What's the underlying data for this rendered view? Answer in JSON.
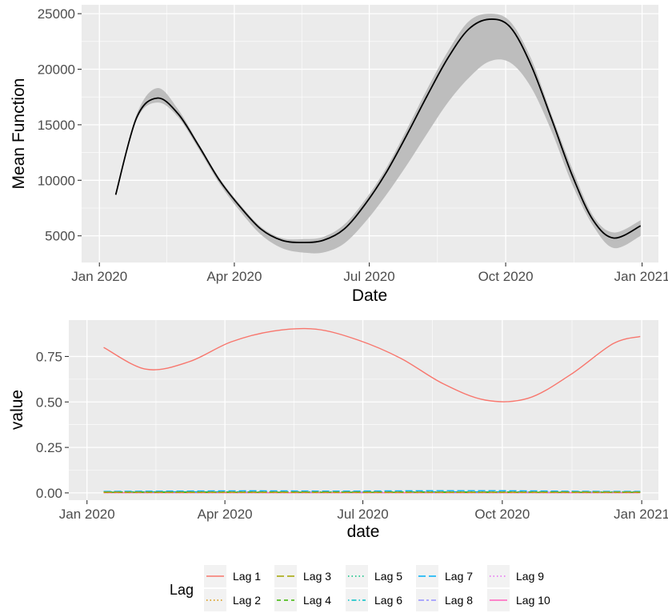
{
  "chart_data": [
    {
      "type": "line",
      "xlabel": "Date",
      "ylabel": "Mean Function",
      "x_tick_labels": [
        "Jan 2020",
        "Apr 2020",
        "Jul 2020",
        "Oct 2020",
        "Jan 2021"
      ],
      "x_tick_dates": [
        "2020-01-01",
        "2020-04-01",
        "2020-07-01",
        "2020-10-01",
        "2021-01-01"
      ],
      "y_tick_labels": [
        "5000",
        "10000",
        "15000",
        "20000",
        "25000"
      ],
      "y_ticks": [
        5000,
        10000,
        15000,
        20000,
        25000
      ],
      "xlim": [
        "2019-12-20",
        "2021-01-12"
      ],
      "ylim": [
        2600,
        25800
      ],
      "grid": true,
      "series": [
        {
          "x": [
            "2020-01-12",
            "2020-01-26",
            "2020-02-09",
            "2020-02-23",
            "2020-03-08",
            "2020-03-22",
            "2020-04-05",
            "2020-04-19",
            "2020-05-03",
            "2020-05-17",
            "2020-05-31",
            "2020-06-14",
            "2020-06-28",
            "2020-07-12",
            "2020-07-26",
            "2020-08-09",
            "2020-08-23",
            "2020-09-06",
            "2020-09-20",
            "2020-10-04",
            "2020-10-18",
            "2020-11-01",
            "2020-11-15",
            "2020-11-29",
            "2020-12-13",
            "2020-12-31"
          ],
          "y": [
            8700,
            15600,
            17400,
            16000,
            13100,
            10000,
            7600,
            5600,
            4600,
            4400,
            4600,
            5600,
            7800,
            10600,
            14000,
            17600,
            21000,
            23600,
            24500,
            23800,
            20400,
            15500,
            10400,
            6400,
            4800,
            5900
          ],
          "lower": [
            8700,
            15400,
            17000,
            15700,
            12800,
            9700,
            7200,
            5100,
            3900,
            3500,
            3500,
            4300,
            6200,
            8600,
            11300,
            14200,
            17000,
            19200,
            20700,
            20600,
            18400,
            14400,
            9600,
            5900,
            3900,
            5000
          ],
          "upper": [
            8800,
            15900,
            18300,
            16400,
            13300,
            10200,
            7800,
            5800,
            4800,
            4700,
            4900,
            6000,
            8200,
            11000,
            14500,
            18200,
            21600,
            24300,
            25000,
            24300,
            21000,
            15900,
            11000,
            6800,
            5300,
            6400
          ],
          "line_color": "#000000",
          "band_color": "#bdbdbd"
        }
      ]
    },
    {
      "type": "line",
      "xlabel": "date",
      "ylabel": "value",
      "x_tick_labels": [
        "Jan 2020",
        "Apr 2020",
        "Jul 2020",
        "Oct 2020",
        "Jan 2021"
      ],
      "x_tick_dates": [
        "2020-01-01",
        "2020-04-01",
        "2020-07-01",
        "2020-10-01",
        "2021-01-01"
      ],
      "y_tick_labels": [
        "0.00",
        "0.25",
        "0.50",
        "0.75"
      ],
      "y_ticks": [
        0,
        0.25,
        0.5,
        0.75
      ],
      "xlim": [
        "2019-12-20",
        "2021-01-12"
      ],
      "ylim": [
        -0.04,
        0.95
      ],
      "grid": true,
      "x": [
        "2020-01-12",
        "2020-02-09",
        "2020-03-08",
        "2020-04-05",
        "2020-05-03",
        "2020-05-31",
        "2020-06-28",
        "2020-07-26",
        "2020-08-23",
        "2020-09-20",
        "2020-10-18",
        "2020-11-15",
        "2020-12-13",
        "2020-12-31"
      ],
      "series": [
        {
          "name": "Lag 1",
          "color": "#F8766D",
          "dash": "solid",
          "values": [
            0.8,
            0.68,
            0.72,
            0.83,
            0.89,
            0.9,
            0.84,
            0.74,
            0.6,
            0.51,
            0.52,
            0.65,
            0.82,
            0.86
          ]
        },
        {
          "name": "Lag 2",
          "color": "#D89000",
          "dash": "dotted",
          "values": [
            0.002,
            0.002,
            0.002,
            0.002,
            0.002,
            0.002,
            0.002,
            0.002,
            0.002,
            0.002,
            0.002,
            0.002,
            0.002,
            0.002
          ]
        },
        {
          "name": "Lag 3",
          "color": "#A3A500",
          "dash": "longdash",
          "values": [
            0.004,
            0.004,
            0.004,
            0.004,
            0.004,
            0.004,
            0.004,
            0.004,
            0.004,
            0.004,
            0.004,
            0.004,
            0.004,
            0.004
          ]
        },
        {
          "name": "Lag 4",
          "color": "#39B600",
          "dash": "dashed",
          "values": [
            0.003,
            0.003,
            0.003,
            0.003,
            0.003,
            0.003,
            0.003,
            0.003,
            0.003,
            0.003,
            0.003,
            0.003,
            0.003,
            0.003
          ]
        },
        {
          "name": "Lag 5",
          "color": "#00BF7D",
          "dash": "dotted",
          "values": [
            0.005,
            0.005,
            0.005,
            0.005,
            0.005,
            0.005,
            0.005,
            0.005,
            0.005,
            0.005,
            0.005,
            0.005,
            0.005,
            0.005
          ]
        },
        {
          "name": "Lag 6",
          "color": "#00BFC4",
          "dash": "dotdash",
          "values": [
            0.006,
            0.006,
            0.006,
            0.006,
            0.006,
            0.006,
            0.006,
            0.006,
            0.006,
            0.006,
            0.006,
            0.006,
            0.006,
            0.006
          ]
        },
        {
          "name": "Lag 7",
          "color": "#00B0F6",
          "dash": "longdash",
          "values": [
            0.008,
            0.009,
            0.01,
            0.011,
            0.011,
            0.01,
            0.01,
            0.011,
            0.012,
            0.012,
            0.011,
            0.009,
            0.008,
            0.008
          ]
        },
        {
          "name": "Lag 8",
          "color": "#9590FF",
          "dash": "twodash",
          "values": [
            0.004,
            0.004,
            0.004,
            0.004,
            0.004,
            0.004,
            0.004,
            0.004,
            0.004,
            0.004,
            0.004,
            0.004,
            0.004,
            0.004
          ]
        },
        {
          "name": "Lag 9",
          "color": "#E76BF3",
          "dash": "dotted",
          "values": [
            0.002,
            0.002,
            0.002,
            0.002,
            0.002,
            0.002,
            0.002,
            0.002,
            0.002,
            0.002,
            0.002,
            0.002,
            0.002,
            0.002
          ]
        },
        {
          "name": "Lag 10",
          "color": "#FF62BC",
          "dash": "solid",
          "values": [
            0.001,
            0.001,
            0.001,
            0.001,
            0.001,
            0.001,
            0.001,
            0.001,
            0.001,
            0.001,
            0.001,
            0.001,
            0.001,
            0.001
          ]
        }
      ]
    }
  ],
  "legend": {
    "title": "Lag",
    "placement": "bottom",
    "items": [
      "Lag 1",
      "Lag 2",
      "Lag 3",
      "Lag 4",
      "Lag 5",
      "Lag 6",
      "Lag 7",
      "Lag 8",
      "Lag 9",
      "Lag 10"
    ]
  }
}
